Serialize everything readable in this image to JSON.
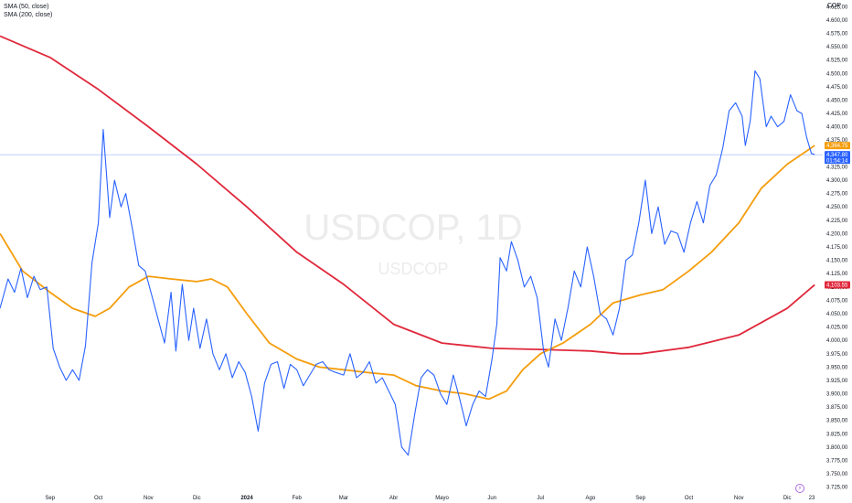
{
  "legend": {
    "sma50": "SMA (50, close)",
    "sma200": "SMA (200, close)"
  },
  "currency": "COP",
  "watermark": {
    "symbol": "USDCOP, 1D",
    "sub": "USDCOP"
  },
  "badges": {
    "sma50_value": "4,364.75",
    "price_value": "4,347.80",
    "countdown": "01:54:14",
    "sma200_value": "4,103.55"
  },
  "colors": {
    "price": "#2962ff",
    "sma50": "#f59d0c",
    "sma200": "#e0283b",
    "hline": "#2962ff"
  },
  "extra_x_label": "23",
  "chart_data": {
    "type": "line",
    "title": "USDCOP, 1D",
    "ylim": [
      3712.5,
      4637.5
    ],
    "y_ticks": [
      3725,
      3750,
      3775,
      3800,
      3825,
      3850,
      3875,
      3900,
      3925,
      3950,
      3975,
      4000,
      4025,
      4050,
      4075,
      4100,
      4125,
      4150,
      4175,
      4200,
      4225,
      4250,
      4275,
      4300,
      4325,
      4350,
      4375,
      4400,
      4425,
      4450,
      4475,
      4500,
      4525,
      4550,
      4575,
      4600,
      4625
    ],
    "y_tick_labels": [
      "3.725,00",
      "3.750,00",
      "3.775,00",
      "3.800,00",
      "3.825,00",
      "3.850,00",
      "3.875,00",
      "3.900,00",
      "3.925,00",
      "3.950,00",
      "3.975,00",
      "4.000,00",
      "4.025,00",
      "4.050,00",
      "4.075,00",
      "4.100,00",
      "4.125,00",
      "4.150,00",
      "4.175,00",
      "4.200,00",
      "4.225,00",
      "4.250,00",
      "4.275,00",
      "4.300,00",
      "4.325,00",
      "4.350,00",
      "4.375,00",
      "4.400,00",
      "4.425,00",
      "4.450,00",
      "4.475,00",
      "4.500,00",
      "4.525,00",
      "4.550,00",
      "4.575,00",
      "4.600,00",
      "4.625,00"
    ],
    "x_ticks": [
      {
        "label": "Sep",
        "date": "2023-09-01",
        "bold": false
      },
      {
        "label": "Oct",
        "date": "2023-10-01",
        "bold": false
      },
      {
        "label": "Nov",
        "date": "2023-11-01",
        "bold": false
      },
      {
        "label": "Dic",
        "date": "2023-12-01",
        "bold": false
      },
      {
        "label": "2024",
        "date": "2024-01-01",
        "bold": true
      },
      {
        "label": "Feb",
        "date": "2024-02-01",
        "bold": false
      },
      {
        "label": "Mar",
        "date": "2024-03-01",
        "bold": false
      },
      {
        "label": "Abr",
        "date": "2024-04-01",
        "bold": false
      },
      {
        "label": "Mayo",
        "date": "2024-05-01",
        "bold": false
      },
      {
        "label": "Jun",
        "date": "2024-06-01",
        "bold": false
      },
      {
        "label": "Jul",
        "date": "2024-07-01",
        "bold": false
      },
      {
        "label": "Ago",
        "date": "2024-08-01",
        "bold": false
      },
      {
        "label": "Sep",
        "date": "2024-09-01",
        "bold": false
      },
      {
        "label": "Oct",
        "date": "2024-10-01",
        "bold": false
      },
      {
        "label": "Nov",
        "date": "2024-11-01",
        "bold": false
      },
      {
        "label": "Dic",
        "date": "2024-12-01",
        "bold": false
      }
    ],
    "xlim": [
      "2023-08-01",
      "2024-12-23"
    ],
    "current_price": 4347.8,
    "series": [
      {
        "name": "USDCOP",
        "color": "#2962ff",
        "points": [
          [
            "2023-08-01",
            4060
          ],
          [
            "2023-08-06",
            4115
          ],
          [
            "2023-08-10",
            4090
          ],
          [
            "2023-08-14",
            4135
          ],
          [
            "2023-08-18",
            4080
          ],
          [
            "2023-08-22",
            4120
          ],
          [
            "2023-08-26",
            4095
          ],
          [
            "2023-08-30",
            4100
          ],
          [
            "2023-09-03",
            3985
          ],
          [
            "2023-09-07",
            3950
          ],
          [
            "2023-09-11",
            3925
          ],
          [
            "2023-09-15",
            3945
          ],
          [
            "2023-09-19",
            3925
          ],
          [
            "2023-09-23",
            3990
          ],
          [
            "2023-09-27",
            4145
          ],
          [
            "2023-10-01",
            4220
          ],
          [
            "2023-10-04",
            4395
          ],
          [
            "2023-10-08",
            4230
          ],
          [
            "2023-10-11",
            4300
          ],
          [
            "2023-10-15",
            4250
          ],
          [
            "2023-10-18",
            4275
          ],
          [
            "2023-10-22",
            4210
          ],
          [
            "2023-10-26",
            4140
          ],
          [
            "2023-10-30",
            4130
          ],
          [
            "2023-11-03",
            4085
          ],
          [
            "2023-11-07",
            4040
          ],
          [
            "2023-11-11",
            3995
          ],
          [
            "2023-11-15",
            4090
          ],
          [
            "2023-11-18",
            3980
          ],
          [
            "2023-11-22",
            4105
          ],
          [
            "2023-11-26",
            4000
          ],
          [
            "2023-11-29",
            4060
          ],
          [
            "2023-12-03",
            3985
          ],
          [
            "2023-12-07",
            4040
          ],
          [
            "2023-12-11",
            3975
          ],
          [
            "2023-12-15",
            3945
          ],
          [
            "2023-12-19",
            3975
          ],
          [
            "2023-12-23",
            3930
          ],
          [
            "2023-12-27",
            3960
          ],
          [
            "2023-12-31",
            3940
          ],
          [
            "2024-01-04",
            3895
          ],
          [
            "2024-01-08",
            3830
          ],
          [
            "2024-01-12",
            3920
          ],
          [
            "2024-01-16",
            3955
          ],
          [
            "2024-01-20",
            3960
          ],
          [
            "2024-01-24",
            3910
          ],
          [
            "2024-01-28",
            3955
          ],
          [
            "2024-02-01",
            3945
          ],
          [
            "2024-02-05",
            3915
          ],
          [
            "2024-02-09",
            3935
          ],
          [
            "2024-02-13",
            3955
          ],
          [
            "2024-02-17",
            3960
          ],
          [
            "2024-02-21",
            3945
          ],
          [
            "2024-02-25",
            3940
          ],
          [
            "2024-03-01",
            3935
          ],
          [
            "2024-03-05",
            3975
          ],
          [
            "2024-03-09",
            3930
          ],
          [
            "2024-03-13",
            3940
          ],
          [
            "2024-03-17",
            3960
          ],
          [
            "2024-03-21",
            3920
          ],
          [
            "2024-03-25",
            3930
          ],
          [
            "2024-03-29",
            3905
          ],
          [
            "2024-04-02",
            3880
          ],
          [
            "2024-04-06",
            3800
          ],
          [
            "2024-04-10",
            3785
          ],
          [
            "2024-04-14",
            3860
          ],
          [
            "2024-04-18",
            3930
          ],
          [
            "2024-04-22",
            3945
          ],
          [
            "2024-04-26",
            3935
          ],
          [
            "2024-04-30",
            3900
          ],
          [
            "2024-05-04",
            3880
          ],
          [
            "2024-05-08",
            3935
          ],
          [
            "2024-05-12",
            3890
          ],
          [
            "2024-05-16",
            3840
          ],
          [
            "2024-05-20",
            3880
          ],
          [
            "2024-05-24",
            3905
          ],
          [
            "2024-05-28",
            3895
          ],
          [
            "2024-06-01",
            3965
          ],
          [
            "2024-06-04",
            4030
          ],
          [
            "2024-06-06",
            4155
          ],
          [
            "2024-06-10",
            4130
          ],
          [
            "2024-06-13",
            4185
          ],
          [
            "2024-06-17",
            4150
          ],
          [
            "2024-06-21",
            4100
          ],
          [
            "2024-06-25",
            4120
          ],
          [
            "2024-06-29",
            4080
          ],
          [
            "2024-07-03",
            3980
          ],
          [
            "2024-07-06",
            3950
          ],
          [
            "2024-07-10",
            4040
          ],
          [
            "2024-07-14",
            4000
          ],
          [
            "2024-07-18",
            4060
          ],
          [
            "2024-07-22",
            4130
          ],
          [
            "2024-07-26",
            4100
          ],
          [
            "2024-07-30",
            4175
          ],
          [
            "2024-08-03",
            4120
          ],
          [
            "2024-08-07",
            4050
          ],
          [
            "2024-08-11",
            4040
          ],
          [
            "2024-08-15",
            4010
          ],
          [
            "2024-08-19",
            4060
          ],
          [
            "2024-08-23",
            4150
          ],
          [
            "2024-08-27",
            4160
          ],
          [
            "2024-08-31",
            4220
          ],
          [
            "2024-09-04",
            4300
          ],
          [
            "2024-09-08",
            4200
          ],
          [
            "2024-09-12",
            4250
          ],
          [
            "2024-09-16",
            4180
          ],
          [
            "2024-09-20",
            4205
          ],
          [
            "2024-09-24",
            4200
          ],
          [
            "2024-09-28",
            4165
          ],
          [
            "2024-10-02",
            4220
          ],
          [
            "2024-10-06",
            4260
          ],
          [
            "2024-10-10",
            4220
          ],
          [
            "2024-10-14",
            4290
          ],
          [
            "2024-10-18",
            4310
          ],
          [
            "2024-10-22",
            4360
          ],
          [
            "2024-10-26",
            4430
          ],
          [
            "2024-10-30",
            4445
          ],
          [
            "2024-11-03",
            4420
          ],
          [
            "2024-11-05",
            4365
          ],
          [
            "2024-11-08",
            4410
          ],
          [
            "2024-11-11",
            4505
          ],
          [
            "2024-11-14",
            4490
          ],
          [
            "2024-11-18",
            4400
          ],
          [
            "2024-11-21",
            4420
          ],
          [
            "2024-11-25",
            4400
          ],
          [
            "2024-11-29",
            4410
          ],
          [
            "2024-12-03",
            4460
          ],
          [
            "2024-12-07",
            4430
          ],
          [
            "2024-12-10",
            4425
          ],
          [
            "2024-12-13",
            4380
          ],
          [
            "2024-12-16",
            4350
          ],
          [
            "2024-12-18",
            4348
          ]
        ]
      },
      {
        "name": "SMA (50, close)",
        "color": "#f59d0c",
        "points": [
          [
            "2023-08-01",
            4200
          ],
          [
            "2023-08-15",
            4130
          ],
          [
            "2023-09-01",
            4090
          ],
          [
            "2023-09-15",
            4060
          ],
          [
            "2023-09-29",
            4045
          ],
          [
            "2023-10-08",
            4060
          ],
          [
            "2023-10-20",
            4100
          ],
          [
            "2023-11-01",
            4120
          ],
          [
            "2023-11-15",
            4115
          ],
          [
            "2023-12-01",
            4110
          ],
          [
            "2023-12-10",
            4115
          ],
          [
            "2023-12-20",
            4100
          ],
          [
            "2024-01-01",
            4050
          ],
          [
            "2024-01-15",
            3995
          ],
          [
            "2024-02-01",
            3965
          ],
          [
            "2024-02-15",
            3950
          ],
          [
            "2024-03-01",
            3945
          ],
          [
            "2024-03-15",
            3940
          ],
          [
            "2024-04-01",
            3935
          ],
          [
            "2024-04-15",
            3915
          ],
          [
            "2024-05-01",
            3905
          ],
          [
            "2024-05-15",
            3900
          ],
          [
            "2024-05-30",
            3890
          ],
          [
            "2024-06-10",
            3905
          ],
          [
            "2024-06-20",
            3945
          ],
          [
            "2024-07-01",
            3975
          ],
          [
            "2024-07-15",
            3995
          ],
          [
            "2024-08-01",
            4030
          ],
          [
            "2024-08-15",
            4070
          ],
          [
            "2024-09-01",
            4085
          ],
          [
            "2024-09-15",
            4095
          ],
          [
            "2024-10-01",
            4130
          ],
          [
            "2024-10-15",
            4165
          ],
          [
            "2024-11-01",
            4220
          ],
          [
            "2024-11-15",
            4285
          ],
          [
            "2024-12-01",
            4330
          ],
          [
            "2024-12-18",
            4365
          ]
        ]
      },
      {
        "name": "SMA (200, close)",
        "color": "#e0283b",
        "points": [
          [
            "2023-08-01",
            4570
          ],
          [
            "2023-09-01",
            4530
          ],
          [
            "2023-10-01",
            4470
          ],
          [
            "2023-11-01",
            4400
          ],
          [
            "2023-12-01",
            4330
          ],
          [
            "2024-01-01",
            4250
          ],
          [
            "2024-02-01",
            4165
          ],
          [
            "2024-03-01",
            4105
          ],
          [
            "2024-04-01",
            4030
          ],
          [
            "2024-05-01",
            3995
          ],
          [
            "2024-06-01",
            3985
          ],
          [
            "2024-07-01",
            3983
          ],
          [
            "2024-08-01",
            3980
          ],
          [
            "2024-08-20",
            3975
          ],
          [
            "2024-09-01",
            3975
          ],
          [
            "2024-10-01",
            3987
          ],
          [
            "2024-11-01",
            4010
          ],
          [
            "2024-12-01",
            4060
          ],
          [
            "2024-12-18",
            4104
          ]
        ]
      }
    ]
  }
}
